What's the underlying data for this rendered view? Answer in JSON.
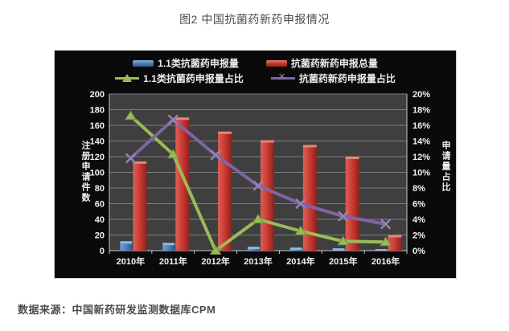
{
  "page": {
    "title": "图2 中国抗菌药新药申报情况",
    "source_note": "数据来源：中国新药研发监测数据库CPM"
  },
  "chart_data": {
    "type": "bar",
    "subtype": "bar-line combo, dual axis, dark plot background",
    "title": "图2 中国抗菌药新药申报情况",
    "categories": [
      "2010年",
      "2011年",
      "2012年",
      "2013年",
      "2014年",
      "2015年",
      "2016年"
    ],
    "series": [
      {
        "name": "1.1类抗菌药申报量",
        "type": "bar",
        "axis": "left",
        "color": "#4f81bd",
        "color_light": "#6d9fd4",
        "color_dark": "#30568d",
        "color_cap": "#8cb6e4",
        "values": [
          12,
          10,
          0,
          5,
          4,
          3,
          2
        ]
      },
      {
        "name": "抗菌药新药申报总量",
        "type": "bar",
        "axis": "left",
        "color": "#c93a31",
        "color_light": "#dd6057",
        "color_dark": "#8e211c",
        "color_cap": "#e8837b",
        "values": [
          114,
          170,
          152,
          141,
          135,
          120,
          20
        ]
      },
      {
        "name": "1.1类抗菌药申报量占比",
        "type": "line",
        "axis": "right",
        "marker": "triangle",
        "color": "#9bbb59",
        "marker_stroke": "#70903c",
        "values": [
          17.2,
          12.3,
          0,
          4.0,
          2.5,
          1.2,
          1.1
        ]
      },
      {
        "name": "抗菌药新药申报量占比",
        "type": "line",
        "axis": "right",
        "marker": "x",
        "color": "#8064a2",
        "marker_color": "#9583b5",
        "values": [
          11.8,
          16.7,
          12.2,
          8.3,
          6.0,
          4.4,
          3.4
        ]
      }
    ],
    "left_axis": {
      "title": "注册申请件数",
      "min": 0,
      "max": 200,
      "step": 20
    },
    "right_axis": {
      "title": "申请量占比",
      "min": 0,
      "max": 20,
      "step": 2,
      "suffix": "%"
    },
    "legend_position": "top",
    "grid": true,
    "colors": {
      "panel_bg": "#0a0a0a",
      "plot_bg": "#3f3f3f",
      "gridline": "#7e7e7e",
      "axis_line": "#c9c9c9",
      "axis_text": "#f2f2f2"
    }
  }
}
